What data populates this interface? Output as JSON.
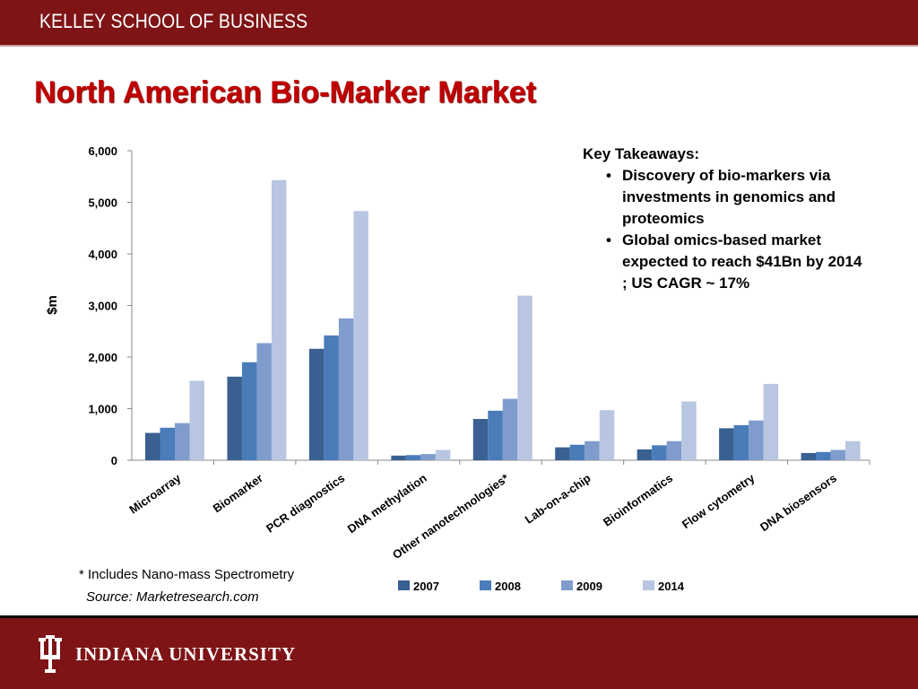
{
  "header": {
    "school_name": "KELLEY SCHOOL OF BUSINESS"
  },
  "slide": {
    "title": "North American Bio-Marker Market"
  },
  "takeaways": {
    "heading": "Key Takeaways:",
    "items": [
      "Discovery of  bio-markers via investments in genomics and proteomics",
      "Global omics-based market expected to reach $41Bn by 2014 ; US CAGR ~ 17%"
    ]
  },
  "footnote": "* Includes Nano-mass Spectrometry",
  "source": "Source: Marketresearch.com",
  "footer": {
    "university_name": "INDIANA UNIVERSITY"
  },
  "colors": {
    "brand": "#7e1416",
    "title": "#c00000",
    "series": [
      "#3a5f91",
      "#4a7cba",
      "#7f9ccd",
      "#b8c6e2"
    ]
  },
  "chart_data": {
    "type": "bar",
    "title": "",
    "xlabel": "",
    "ylabel": "$m",
    "ylim": [
      0,
      6000
    ],
    "yticks": [
      0,
      1000,
      2000,
      3000,
      4000,
      5000,
      6000
    ],
    "ytick_labels": [
      "0",
      "1,000",
      "2,000",
      "3,000",
      "4,000",
      "5,000",
      "6,000"
    ],
    "categories": [
      "Microarray",
      "Biomarker",
      "PCR diagnostics",
      "DNA methylation",
      "Other nanotechnologies*",
      "Lab-on-a-chip",
      "Bioinformatics",
      "Flow cytometry",
      "DNA biosensors"
    ],
    "series": [
      {
        "name": "2007",
        "values": [
          530,
          1620,
          2160,
          90,
          800,
          250,
          210,
          620,
          140
        ]
      },
      {
        "name": "2008",
        "values": [
          630,
          1900,
          2420,
          100,
          960,
          300,
          290,
          680,
          160
        ]
      },
      {
        "name": "2009",
        "values": [
          720,
          2270,
          2750,
          120,
          1190,
          370,
          370,
          770,
          200
        ]
      },
      {
        "name": "2014",
        "values": [
          1540,
          5430,
          4830,
          200,
          3190,
          970,
          1140,
          1480,
          370
        ]
      }
    ],
    "grid": false,
    "legend": "bottom"
  }
}
